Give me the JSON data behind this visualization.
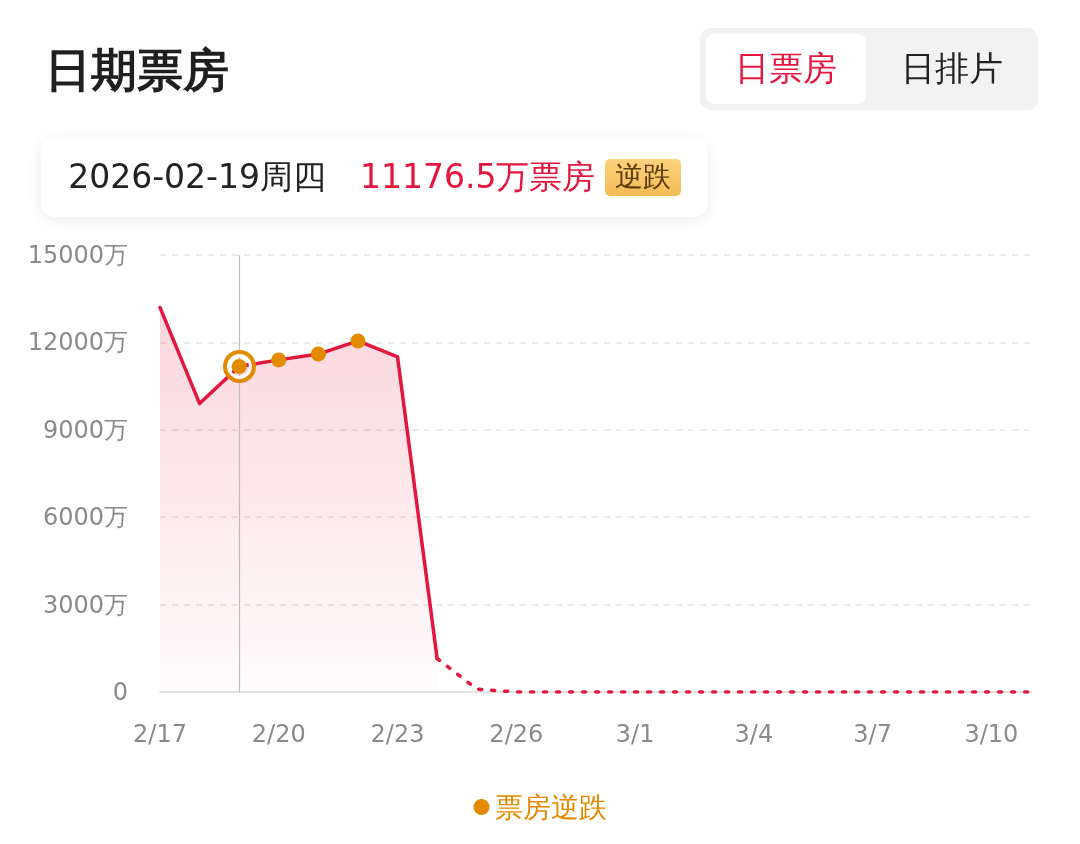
{
  "chart_data": {
    "type": "line",
    "title": "日期票房",
    "xlim": [
      "2026-02-17",
      "2026-03-11"
    ],
    "xticks": [
      {
        "value": "2026-02-17",
        "label": "2/17"
      },
      {
        "value": "2026-02-20",
        "label": "2/20"
      },
      {
        "value": "2026-02-23",
        "label": "2/23"
      },
      {
        "value": "2026-02-26",
        "label": "2/26"
      },
      {
        "value": "2026-03-01",
        "label": "3/1"
      },
      {
        "value": "2026-03-04",
        "label": "3/4"
      },
      {
        "value": "2026-03-07",
        "label": "3/7"
      },
      {
        "value": "2026-03-10",
        "label": "3/10"
      }
    ],
    "ylim": [
      0,
      15000
    ],
    "yticks": [
      0,
      {
        "value": 3000,
        "label": "3000万"
      },
      {
        "value": 6000,
        "label": "6000万"
      },
      {
        "value": 9000,
        "label": "9000万"
      },
      {
        "value": 12000,
        "label": "12000万"
      },
      {
        "value": 15000,
        "label": "15000万"
      }
    ],
    "grid": "y",
    "legend": "bottom",
    "series": [
      {
        "type": "area",
        "color": "#e3173e",
        "line_style": "solid",
        "marker": "none",
        "x": [
          "2026-02-17",
          "2026-02-18",
          "2026-02-19",
          "2026-02-20",
          "2026-02-21",
          "2026-02-22",
          "2026-02-23",
          "2026-02-24"
        ],
        "values": [
          13200,
          9900,
          11176.5,
          11400,
          11600,
          12050,
          11500,
          1150
        ]
      },
      {
        "color": "#e3173e",
        "line_style": "dotted",
        "marker": "none",
        "x": [
          "2026-02-24",
          "2026-02-25",
          "2026-02-26",
          "2026-02-27",
          "2026-02-28",
          "2026-03-01",
          "2026-03-02",
          "2026-03-03",
          "2026-03-04",
          "2026-03-05",
          "2026-03-06",
          "2026-03-07",
          "2026-03-08",
          "2026-03-09",
          "2026-03-10",
          "2026-03-11"
        ],
        "values": [
          1150,
          100,
          0,
          0,
          0,
          0,
          0,
          0,
          0,
          0,
          0,
          0,
          0,
          0,
          0,
          0
        ]
      },
      {
        "type": "scatter",
        "name": "票房逆跌",
        "color": "#e38b00",
        "marker": "circle",
        "x": [
          "2026-02-19",
          "2026-02-20",
          "2026-02-21",
          "2026-02-22"
        ],
        "values": [
          11176.5,
          11400,
          11600,
          12050
        ]
      }
    ],
    "ref_lines": [
      {
        "axis": "x",
        "value": "2026-02-19",
        "color": "#bdbdbd"
      }
    ],
    "annotations": [
      "2026-02-19周四",
      "11176.5万票房",
      "逆跌",
      "日票房",
      "日排片"
    ]
  }
}
